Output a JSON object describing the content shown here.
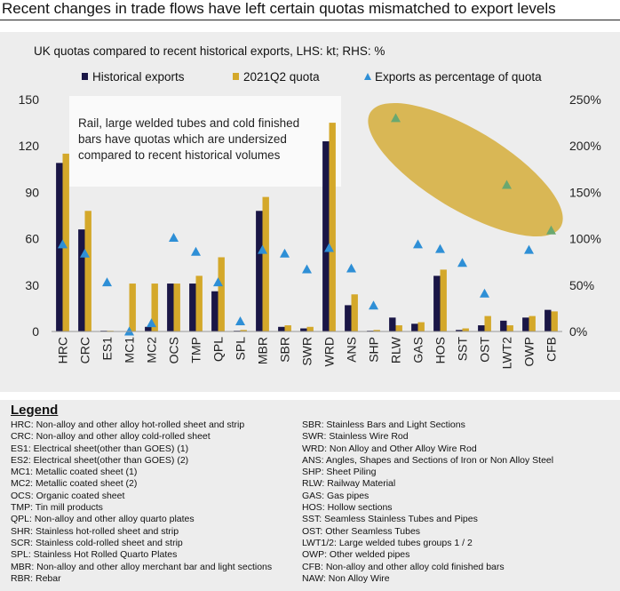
{
  "title": "Recent changes in trade flows have left certain quotas mismatched to export levels",
  "chart_data": {
    "type": "bar",
    "title": "UK quotas compared to recent historical exports, LHS: kt; RHS: %",
    "categories": [
      "HRC",
      "CRC",
      "ES1",
      "MC1",
      "MC2",
      "OCS",
      "TMP",
      "QPL",
      "SPL",
      "MBR",
      "SBR",
      "SWR",
      "WRD",
      "ANS",
      "SHP",
      "RLW",
      "GAS",
      "HOS",
      "SST",
      "OST",
      "LWT2",
      "OWP",
      "CFB"
    ],
    "series": [
      {
        "name": "Historical exports",
        "axis": "left",
        "color": "#1a1646",
        "values": [
          109,
          66,
          0.5,
          0,
          3,
          31,
          31,
          26,
          0.5,
          78,
          3,
          2,
          123,
          17,
          0.5,
          9,
          5,
          36,
          1,
          4,
          7,
          9,
          14
        ]
      },
      {
        "name": "2021Q2 quota",
        "axis": "left",
        "color": "#d4a82a",
        "values": [
          115,
          78,
          0.5,
          31,
          31,
          31,
          36,
          48,
          1,
          87,
          4,
          3,
          135,
          24,
          1,
          4,
          6,
          40,
          2,
          10,
          4,
          10,
          13
        ]
      },
      {
        "name": "Exports as percentage of quota",
        "axis": "right",
        "type": "scatter",
        "marker": "triangle",
        "color": "#2e8fd6",
        "values": [
          94,
          84,
          53,
          0,
          9,
          101,
          86,
          53,
          11,
          88,
          84,
          67,
          90,
          68,
          28,
          230,
          94,
          89,
          74,
          41,
          158,
          88,
          109
        ]
      }
    ],
    "highlighted_categories": [
      "RLW",
      "LWT2",
      "CFB"
    ],
    "highlight_color": "#6aa870",
    "left_axis": {
      "ylim": [
        0,
        150
      ],
      "ticks": [
        "0",
        "30",
        "60",
        "90",
        "120",
        "150"
      ]
    },
    "right_axis": {
      "ylim": [
        0,
        250
      ],
      "ticks": [
        "0%",
        "50%",
        "100%",
        "150%",
        "200%",
        "250%"
      ]
    },
    "grid": false,
    "legend_position": "top",
    "annotation": {
      "lines": [
        "Rail, large welded tubes and cold finished",
        "bars have quotas which are undersized",
        "compared to recent historical volumes"
      ]
    },
    "highlight_ellipse_color": "#d4a82a"
  },
  "legend": {
    "title": "Legend",
    "left": [
      "HRC: Non-alloy and other alloy hot-rolled sheet and strip",
      "CRC: Non-alloy and other alloy cold-rolled sheet",
      "ES1: Electrical sheet(other than GOES) (1)",
      "ES2: Electrical sheet(other than GOES) (2)",
      "MC1: Metallic coated sheet (1)",
      "MC2: Metallic coated sheet (2)",
      "OCS: Organic coated sheet",
      "TMP: Tin mill products",
      "QPL: Non-alloy and other alloy quarto plates",
      "SHR: Stainless hot-rolled sheet and strip",
      "SCR: Stainless cold-rolled sheet and strip",
      "SPL: Stainless Hot Rolled Quarto Plates",
      "MBR: Non-alloy and other alloy merchant bar and light sections",
      "RBR: Rebar"
    ],
    "right": [
      "SBR: Stainless Bars and Light Sections",
      "SWR: Stainless Wire Rod",
      "WRD: Non Alloy and Other Alloy Wire Rod",
      "ANS: Angles, Shapes and Sections of Iron or Non Alloy Steel",
      "SHP: Sheet Piling",
      "RLW: Railway Material",
      "GAS: Gas pipes",
      "HOS: Hollow sections",
      "SST: Seamless Stainless Tubes and Pipes",
      "OST: Other Seamless Tubes",
      "LWT1/2: Large welded tubes groups 1 / 2",
      "OWP: Other welded pipes",
      "CFB: Non-alloy and other alloy cold finished bars",
      "NAW: Non Alloy Wire"
    ]
  }
}
